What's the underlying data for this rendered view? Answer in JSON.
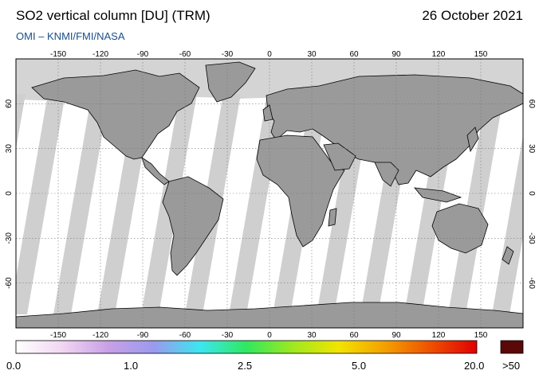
{
  "title": "SO2 vertical column [DU] (TRM)",
  "subtitle": "OMI  –  KNMI/FMI/NASA",
  "date": "26 October 2021",
  "map": {
    "projection": "equirectangular",
    "lon_ticks": [
      -150,
      -120,
      -90,
      -60,
      -30,
      0,
      30,
      60,
      90,
      120,
      150
    ],
    "lat_ticks": [
      60,
      30,
      0,
      -30,
      -60
    ],
    "lon_range": [
      -180,
      180
    ],
    "lat_range": [
      -90,
      90
    ],
    "colors": {
      "land_nodata": "#9a9a9a",
      "ocean_nodata": "#d4d4d4",
      "orbit_gap": "#cfcfcf",
      "valid": "#ffffff",
      "coastline": "#000000",
      "grid": "#777777"
    }
  },
  "colorbar": {
    "labels": [
      "0.0",
      "1.0",
      "2.5",
      "5.0",
      "20.0",
      ">50"
    ],
    "stops": [
      "#ffffff",
      "#f2d6f2",
      "#c8a0e6",
      "#9a9aee",
      "#3ce6f0",
      "#30e860",
      "#9ee820",
      "#f2e400",
      "#f4a000",
      "#ee5000",
      "#e00000"
    ],
    "over_color": "#5a0808"
  }
}
